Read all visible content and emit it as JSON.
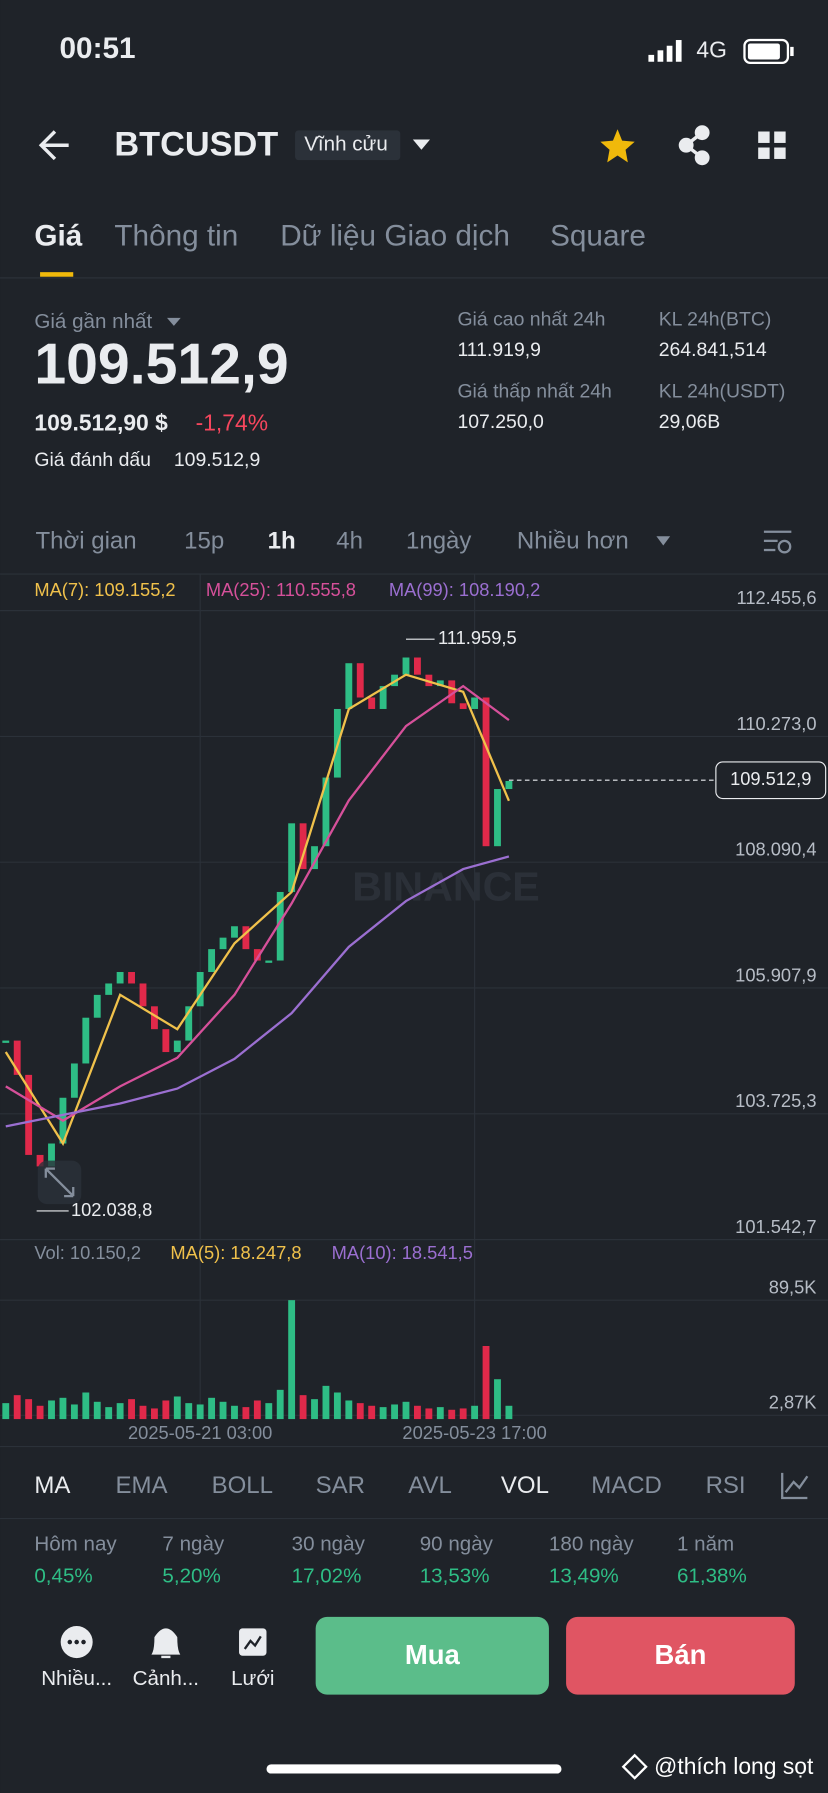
{
  "status_bar": {
    "time": "00:51",
    "network": "4G"
  },
  "header": {
    "symbol": "BTCUSDT",
    "contract": "Vĩnh cửu"
  },
  "tabs": [
    "Giá",
    "Thông tin",
    "Dữ liệu Giao dịch",
    "Square"
  ],
  "ticker": {
    "last_label": "Giá gần nhất",
    "last": "109.512,9",
    "usd": "109.512,90 $",
    "change": "-1,74%",
    "mark_label": "Giá đánh dấu",
    "mark": "109.512,9",
    "stats": [
      {
        "label": "Giá cao nhất 24h",
        "value": "111.919,9"
      },
      {
        "label": "KL 24h(BTC)",
        "value": "264.841,514"
      },
      {
        "label": "Giá thấp nhất 24h",
        "value": "107.250,0"
      },
      {
        "label": "KL 24h(USDT)",
        "value": "29,06B"
      }
    ]
  },
  "intervals": [
    "Thời gian",
    "15p",
    "1h",
    "4h",
    "1ngày",
    "Nhiều hơn"
  ],
  "chart_data": {
    "type": "candlestick",
    "watermark": "BINANCE",
    "categories": [
      null,
      null,
      null,
      null,
      null,
      null,
      null,
      null,
      null,
      null,
      null,
      null,
      null,
      null,
      null,
      null,
      null,
      "2025-05-21 03:00",
      null,
      null,
      null,
      null,
      null,
      null,
      null,
      null,
      null,
      null,
      null,
      null,
      null,
      null,
      null,
      null,
      null,
      null,
      null,
      null,
      null,
      null,
      null,
      "2025-05-23 17:00",
      null,
      null,
      null
    ],
    "values": [
      104995,
      104400,
      103011,
      102812,
      103209,
      104003,
      104598,
      105392,
      105788,
      105986,
      106185,
      105986,
      105590,
      105193,
      104796,
      104995,
      105590,
      106185,
      106582,
      106781,
      106979,
      106582,
      106384,
      106384,
      107574,
      108765,
      107971,
      108368,
      109559,
      110749,
      111543,
      110948,
      110749,
      111146,
      111344,
      111642,
      111344,
      111146,
      111245,
      110848,
      110749,
      110948,
      108368,
      109360,
      109499
    ],
    "up_color": "#2ebd85",
    "down_color": "#e0294a",
    "lines": [
      {
        "name": "MA(7): 109.155,2",
        "color": "#f0c14b",
        "x": [
          0,
          5,
          10,
          15,
          20,
          25,
          30,
          35,
          40,
          44
        ],
        "values": [
          104797,
          103209,
          105789,
          105193,
          106682,
          107574,
          110749,
          111344,
          111047,
          109155.2
        ]
      },
      {
        "name": "MA(25): 110.555,8",
        "color": "#d6509a",
        "x": [
          0,
          5,
          10,
          15,
          20,
          25,
          30,
          35,
          40,
          44
        ],
        "values": [
          104201,
          103606,
          104201,
          104697,
          105789,
          107376,
          109162,
          110452,
          111146,
          110555.8
        ]
      },
      {
        "name": "MA(99): 108.190,2",
        "color": "#9b6fd1",
        "x": [
          0,
          5,
          10,
          15,
          20,
          25,
          30,
          35,
          40,
          44
        ],
        "values": [
          103507,
          103705,
          103904,
          104162,
          104678,
          105471,
          106622,
          107416,
          107971,
          108190.2
        ]
      }
    ],
    "ylim": [
      101542.7,
      113090.5
    ],
    "yticks": [
      {
        "value": 101542.7,
        "label": "101.542,7"
      },
      {
        "value": 103725.3,
        "label": "103.725,3"
      },
      {
        "value": 105907.9,
        "label": "105.907,9"
      },
      {
        "value": 108090.4,
        "label": "108.090,4"
      },
      {
        "value": 110273,
        "label": "110.273,0"
      },
      {
        "value": 112455.6,
        "label": "112.455,6"
      }
    ],
    "grid": true,
    "last_price": {
      "value": 109512.9,
      "label": "109.512,9"
    },
    "high_marker": {
      "value": 111959.5,
      "label": "111.959,5"
    },
    "low_marker": {
      "value": 102038.8,
      "label": "102.038,8"
    },
    "volume": {
      "legend": "Vol: 10.150,2",
      "ma_legend": [
        {
          "name": "MA(5): 18.247,8",
          "color": "#f0c14b"
        },
        {
          "name": "MA(10): 18.541,5",
          "color": "#9b6fd1"
        }
      ],
      "values": [
        12000,
        18000,
        15000,
        10000,
        14000,
        16000,
        11000,
        20000,
        13000,
        9000,
        12000,
        15000,
        10000,
        8000,
        14000,
        17000,
        12000,
        11000,
        16000,
        13000,
        10000,
        9000,
        14000,
        12000,
        22000,
        89500,
        18000,
        15000,
        25000,
        20000,
        14000,
        12000,
        10000,
        9000,
        11000,
        13000,
        10000,
        8000,
        9000,
        7000,
        8000,
        10000,
        55000,
        30000,
        10000
      ],
      "ylim": [
        0,
        89500
      ],
      "yticks": [
        {
          "value": 2870,
          "label": "2,87K"
        },
        {
          "value": 89500,
          "label": "89,5K"
        }
      ]
    }
  },
  "indicators": [
    "MA",
    "EMA",
    "BOLL",
    "SAR",
    "AVL",
    "VOL",
    "MACD",
    "RSI"
  ],
  "performance": [
    {
      "label": "Hôm nay",
      "value": "0,45%"
    },
    {
      "label": "7 ngày",
      "value": "5,20%"
    },
    {
      "label": "30 ngày",
      "value": "17,02%"
    },
    {
      "label": "90 ngày",
      "value": "13,53%"
    },
    {
      "label": "180 ngày",
      "value": "13,49%"
    },
    {
      "label": "1 năm",
      "value": "61,38%"
    }
  ],
  "actions": [
    "Nhiều...",
    "Cảnh...",
    "Lưới"
  ],
  "buy": "Mua",
  "sell": "Bán",
  "watermark": "@thích long sọt"
}
